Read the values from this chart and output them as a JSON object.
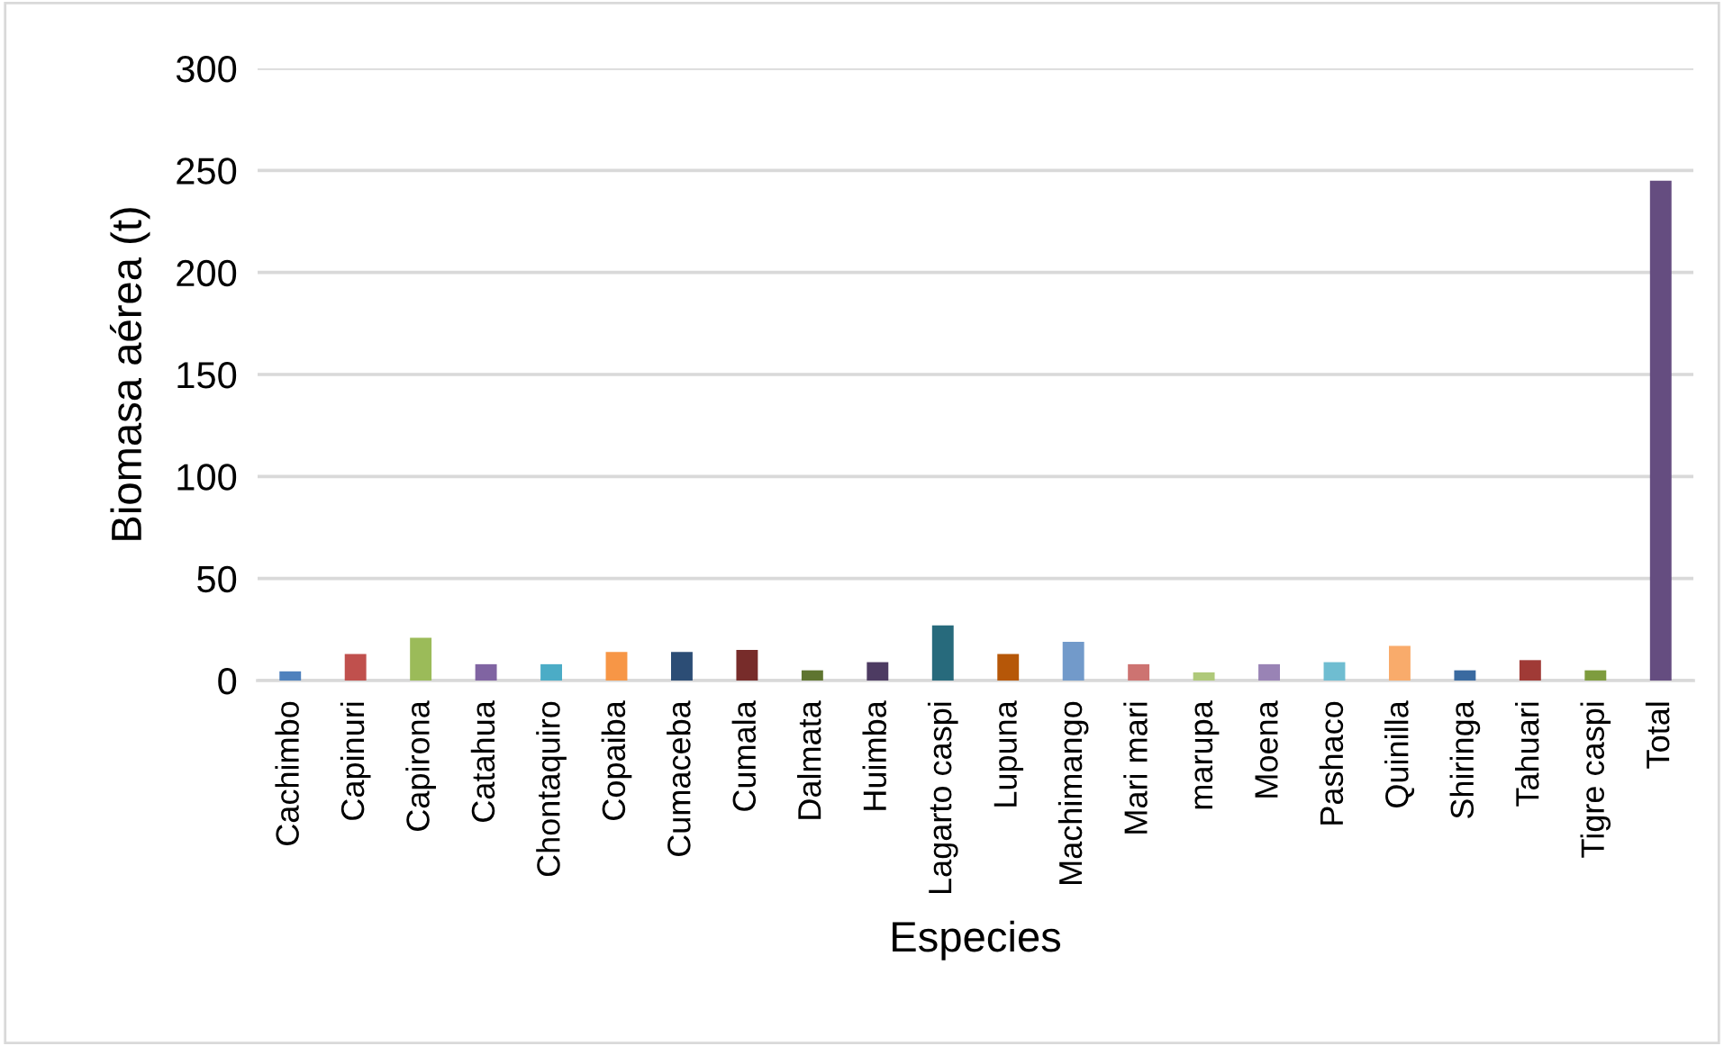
{
  "chart_data": {
    "type": "bar",
    "xlabel": "Especies",
    "ylabel": "Biomasa aérea (t)",
    "categories": [
      "Cachimbo",
      "Capinuri",
      "Capirona",
      "Catahua",
      "Chontaquiro",
      "Copaiba",
      "Cumaceba",
      "Cumala",
      "Dalmata",
      "Huimba",
      "Lagarto caspi",
      "Lupuna",
      "Machimango",
      "Mari mari",
      "marupa",
      "Moena",
      "Pashaco",
      "Quinilla",
      "Shiringa",
      "Tahuari",
      "Tigre caspi",
      "Total"
    ],
    "values": [
      4.5,
      13,
      21,
      8,
      8,
      14,
      14,
      15,
      5,
      9,
      27,
      13,
      19,
      8,
      4,
      8,
      9,
      17,
      5,
      10,
      5,
      245
    ],
    "colors": [
      "#4f81bd",
      "#c0504d",
      "#9bbb59",
      "#8064a2",
      "#4bacc6",
      "#f79646",
      "#2c4d75",
      "#772c2a",
      "#5f7530",
      "#4d3b62",
      "#276a7c",
      "#b65708",
      "#729aca",
      "#cd7371",
      "#afc97a",
      "#9983b5",
      "#6fbdd1",
      "#f9ab6b",
      "#3a6aa0",
      "#a03a36",
      "#7e9c3e",
      "#654d80"
    ],
    "ylim": [
      0,
      300
    ],
    "yticks": [
      0,
      50,
      100,
      150,
      200,
      250,
      300
    ],
    "grid": "y"
  }
}
